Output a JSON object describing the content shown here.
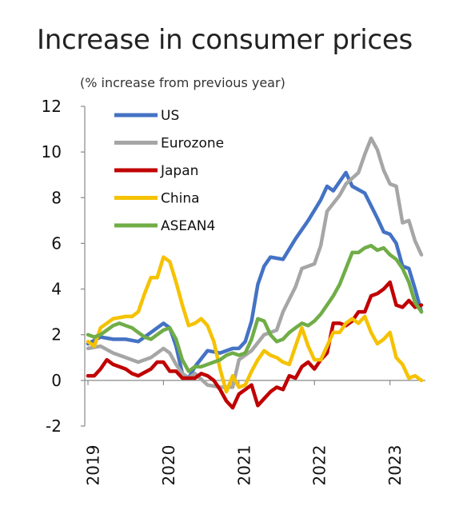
{
  "chart_data": {
    "type": "line",
    "title": "Increase in consumer prices",
    "subtitle": "(% increase from previous year)",
    "xlabel": "",
    "ylabel": "",
    "ylim": [
      -2,
      12
    ],
    "yticks": [
      "12",
      "10",
      "8",
      "6",
      "4",
      "2",
      "0",
      "-2"
    ],
    "xticks": [
      "2019",
      "2020",
      "2021",
      "2022",
      "2023"
    ],
    "x_range": [
      "2019-01",
      "2023-06"
    ],
    "legend_position": "top-left",
    "grid": false,
    "series": [
      {
        "name": "US",
        "color": "#4472c4",
        "points": [
          [
            "2019-01",
            1.6
          ],
          [
            "2019-03",
            1.9
          ],
          [
            "2019-05",
            1.8
          ],
          [
            "2019-07",
            1.8
          ],
          [
            "2019-09",
            1.7
          ],
          [
            "2019-11",
            2.1
          ],
          [
            "2020-01",
            2.5
          ],
          [
            "2020-02",
            2.3
          ],
          [
            "2020-03",
            1.5
          ],
          [
            "2020-04",
            0.3
          ],
          [
            "2020-05",
            0.1
          ],
          [
            "2020-06",
            0.6
          ],
          [
            "2020-08",
            1.3
          ],
          [
            "2020-10",
            1.2
          ],
          [
            "2020-12",
            1.4
          ],
          [
            "2021-01",
            1.4
          ],
          [
            "2021-02",
            1.7
          ],
          [
            "2021-03",
            2.6
          ],
          [
            "2021-04",
            4.2
          ],
          [
            "2021-05",
            5.0
          ],
          [
            "2021-06",
            5.4
          ],
          [
            "2021-08",
            5.3
          ],
          [
            "2021-10",
            6.2
          ],
          [
            "2021-12",
            7.0
          ],
          [
            "2022-02",
            7.9
          ],
          [
            "2022-03",
            8.5
          ],
          [
            "2022-04",
            8.3
          ],
          [
            "2022-06",
            9.1
          ],
          [
            "2022-07",
            8.5
          ],
          [
            "2022-09",
            8.2
          ],
          [
            "2022-11",
            7.1
          ],
          [
            "2022-12",
            6.5
          ],
          [
            "2023-01",
            6.4
          ],
          [
            "2023-02",
            6.0
          ],
          [
            "2023-03",
            5.0
          ],
          [
            "2023-04",
            4.9
          ],
          [
            "2023-05",
            4.0
          ],
          [
            "2023-06",
            3.0
          ]
        ]
      },
      {
        "name": "Eurozone",
        "color": "#a6a6a6",
        "points": [
          [
            "2019-01",
            1.4
          ],
          [
            "2019-03",
            1.5
          ],
          [
            "2019-05",
            1.2
          ],
          [
            "2019-07",
            1.0
          ],
          [
            "2019-09",
            0.8
          ],
          [
            "2019-11",
            1.0
          ],
          [
            "2020-01",
            1.4
          ],
          [
            "2020-02",
            1.2
          ],
          [
            "2020-03",
            0.7
          ],
          [
            "2020-04",
            0.3
          ],
          [
            "2020-05",
            0.1
          ],
          [
            "2020-06",
            0.3
          ],
          [
            "2020-08",
            -0.2
          ],
          [
            "2020-10",
            -0.3
          ],
          [
            "2020-12",
            -0.3
          ],
          [
            "2021-01",
            0.9
          ],
          [
            "2021-03",
            1.3
          ],
          [
            "2021-05",
            2.0
          ],
          [
            "2021-07",
            2.2
          ],
          [
            "2021-08",
            3.0
          ],
          [
            "2021-10",
            4.1
          ],
          [
            "2021-11",
            4.9
          ],
          [
            "2021-12",
            5.0
          ],
          [
            "2022-01",
            5.1
          ],
          [
            "2022-02",
            5.9
          ],
          [
            "2022-03",
            7.4
          ],
          [
            "2022-05",
            8.1
          ],
          [
            "2022-06",
            8.6
          ],
          [
            "2022-08",
            9.1
          ],
          [
            "2022-09",
            9.9
          ],
          [
            "2022-10",
            10.6
          ],
          [
            "2022-11",
            10.1
          ],
          [
            "2022-12",
            9.2
          ],
          [
            "2023-01",
            8.6
          ],
          [
            "2023-02",
            8.5
          ],
          [
            "2023-03",
            6.9
          ],
          [
            "2023-04",
            7.0
          ],
          [
            "2023-05",
            6.1
          ],
          [
            "2023-06",
            5.5
          ]
        ]
      },
      {
        "name": "Japan",
        "color": "#c00000",
        "points": [
          [
            "2019-01",
            0.2
          ],
          [
            "2019-02",
            0.2
          ],
          [
            "2019-03",
            0.5
          ],
          [
            "2019-04",
            0.9
          ],
          [
            "2019-05",
            0.7
          ],
          [
            "2019-07",
            0.5
          ],
          [
            "2019-08",
            0.3
          ],
          [
            "2019-09",
            0.2
          ],
          [
            "2019-11",
            0.5
          ],
          [
            "2019-12",
            0.8
          ],
          [
            "2020-01",
            0.8
          ],
          [
            "2020-02",
            0.4
          ],
          [
            "2020-03",
            0.4
          ],
          [
            "2020-04",
            0.1
          ],
          [
            "2020-05",
            0.1
          ],
          [
            "2020-06",
            0.1
          ],
          [
            "2020-07",
            0.3
          ],
          [
            "2020-08",
            0.2
          ],
          [
            "2020-09",
            0.0
          ],
          [
            "2020-10",
            -0.4
          ],
          [
            "2020-11",
            -0.9
          ],
          [
            "2020-12",
            -1.2
          ],
          [
            "2021-01",
            -0.6
          ],
          [
            "2021-02",
            -0.4
          ],
          [
            "2021-03",
            -0.2
          ],
          [
            "2021-04",
            -1.1
          ],
          [
            "2021-05",
            -0.8
          ],
          [
            "2021-06",
            -0.5
          ],
          [
            "2021-07",
            -0.3
          ],
          [
            "2021-08",
            -0.4
          ],
          [
            "2021-09",
            0.2
          ],
          [
            "2021-10",
            0.1
          ],
          [
            "2021-11",
            0.6
          ],
          [
            "2021-12",
            0.8
          ],
          [
            "2022-01",
            0.5
          ],
          [
            "2022-02",
            0.9
          ],
          [
            "2022-03",
            1.2
          ],
          [
            "2022-04",
            2.5
          ],
          [
            "2022-05",
            2.5
          ],
          [
            "2022-06",
            2.4
          ],
          [
            "2022-07",
            2.6
          ],
          [
            "2022-08",
            3.0
          ],
          [
            "2022-09",
            3.0
          ],
          [
            "2022-10",
            3.7
          ],
          [
            "2022-11",
            3.8
          ],
          [
            "2022-12",
            4.0
          ],
          [
            "2023-01",
            4.3
          ],
          [
            "2023-02",
            3.3
          ],
          [
            "2023-03",
            3.2
          ],
          [
            "2023-04",
            3.5
          ],
          [
            "2023-05",
            3.2
          ],
          [
            "2023-06",
            3.3
          ]
        ]
      },
      {
        "name": "China",
        "color": "#f5c200",
        "points": [
          [
            "2019-01",
            1.7
          ],
          [
            "2019-02",
            1.5
          ],
          [
            "2019-03",
            2.3
          ],
          [
            "2019-04",
            2.5
          ],
          [
            "2019-05",
            2.7
          ],
          [
            "2019-07",
            2.8
          ],
          [
            "2019-08",
            2.8
          ],
          [
            "2019-09",
            3.0
          ],
          [
            "2019-10",
            3.8
          ],
          [
            "2019-11",
            4.5
          ],
          [
            "2019-12",
            4.5
          ],
          [
            "2020-01",
            5.4
          ],
          [
            "2020-02",
            5.2
          ],
          [
            "2020-03",
            4.3
          ],
          [
            "2020-04",
            3.3
          ],
          [
            "2020-05",
            2.4
          ],
          [
            "2020-06",
            2.5
          ],
          [
            "2020-07",
            2.7
          ],
          [
            "2020-08",
            2.4
          ],
          [
            "2020-09",
            1.7
          ],
          [
            "2020-10",
            0.5
          ],
          [
            "2020-11",
            -0.5
          ],
          [
            "2020-12",
            0.2
          ],
          [
            "2021-01",
            -0.3
          ],
          [
            "2021-02",
            -0.2
          ],
          [
            "2021-03",
            0.4
          ],
          [
            "2021-04",
            0.9
          ],
          [
            "2021-05",
            1.3
          ],
          [
            "2021-06",
            1.1
          ],
          [
            "2021-07",
            1.0
          ],
          [
            "2021-08",
            0.8
          ],
          [
            "2021-09",
            0.7
          ],
          [
            "2021-10",
            1.5
          ],
          [
            "2021-11",
            2.3
          ],
          [
            "2021-12",
            1.5
          ],
          [
            "2022-01",
            0.9
          ],
          [
            "2022-02",
            0.9
          ],
          [
            "2022-03",
            1.5
          ],
          [
            "2022-04",
            2.1
          ],
          [
            "2022-05",
            2.1
          ],
          [
            "2022-06",
            2.5
          ],
          [
            "2022-07",
            2.7
          ],
          [
            "2022-08",
            2.5
          ],
          [
            "2022-09",
            2.8
          ],
          [
            "2022-10",
            2.1
          ],
          [
            "2022-11",
            1.6
          ],
          [
            "2022-12",
            1.8
          ],
          [
            "2023-01",
            2.1
          ],
          [
            "2023-02",
            1.0
          ],
          [
            "2023-03",
            0.7
          ],
          [
            "2023-04",
            0.1
          ],
          [
            "2023-05",
            0.2
          ],
          [
            "2023-06",
            0.0
          ]
        ]
      },
      {
        "name": "ASEAN4",
        "color": "#70ad47",
        "points": [
          [
            "2019-01",
            2.0
          ],
          [
            "2019-02",
            1.9
          ],
          [
            "2019-03",
            2.0
          ],
          [
            "2019-04",
            2.2
          ],
          [
            "2019-05",
            2.4
          ],
          [
            "2019-06",
            2.5
          ],
          [
            "2019-07",
            2.4
          ],
          [
            "2019-08",
            2.3
          ],
          [
            "2019-09",
            2.1
          ],
          [
            "2019-10",
            1.9
          ],
          [
            "2019-11",
            1.8
          ],
          [
            "2019-12",
            2.0
          ],
          [
            "2020-01",
            2.2
          ],
          [
            "2020-02",
            2.3
          ],
          [
            "2020-03",
            1.8
          ],
          [
            "2020-04",
            0.9
          ],
          [
            "2020-05",
            0.4
          ],
          [
            "2020-06",
            0.6
          ],
          [
            "2020-07",
            0.6
          ],
          [
            "2020-08",
            0.7
          ],
          [
            "2020-09",
            0.8
          ],
          [
            "2020-10",
            0.9
          ],
          [
            "2020-11",
            1.1
          ],
          [
            "2020-12",
            1.2
          ],
          [
            "2021-01",
            1.1
          ],
          [
            "2021-02",
            1.2
          ],
          [
            "2021-03",
            1.8
          ],
          [
            "2021-04",
            2.7
          ],
          [
            "2021-05",
            2.6
          ],
          [
            "2021-06",
            2.0
          ],
          [
            "2021-07",
            1.7
          ],
          [
            "2021-08",
            1.8
          ],
          [
            "2021-09",
            2.1
          ],
          [
            "2021-10",
            2.3
          ],
          [
            "2021-11",
            2.5
          ],
          [
            "2021-12",
            2.4
          ],
          [
            "2022-01",
            2.6
          ],
          [
            "2022-02",
            2.9
          ],
          [
            "2022-03",
            3.3
          ],
          [
            "2022-04",
            3.7
          ],
          [
            "2022-05",
            4.2
          ],
          [
            "2022-06",
            4.9
          ],
          [
            "2022-07",
            5.6
          ],
          [
            "2022-08",
            5.6
          ],
          [
            "2022-09",
            5.8
          ],
          [
            "2022-10",
            5.9
          ],
          [
            "2022-11",
            5.7
          ],
          [
            "2022-12",
            5.8
          ],
          [
            "2023-01",
            5.5
          ],
          [
            "2023-02",
            5.3
          ],
          [
            "2023-03",
            4.9
          ],
          [
            "2023-04",
            4.3
          ],
          [
            "2023-05",
            3.4
          ],
          [
            "2023-06",
            3.0
          ]
        ]
      }
    ]
  }
}
